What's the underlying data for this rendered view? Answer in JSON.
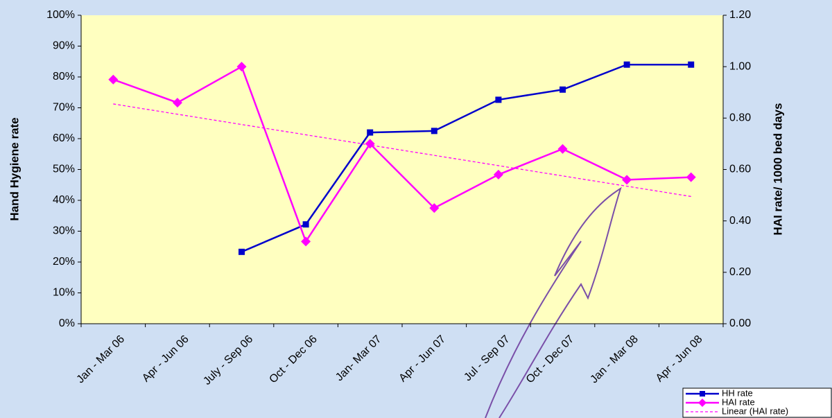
{
  "chart_data": {
    "type": "line",
    "categories": [
      "Jan - Mar 06",
      "Apr - Jun 06",
      "July - Sep 06",
      "Oct - Dec 06",
      "Jan- Mar 07",
      "Apr - Jun 07",
      "Jul - Sep 07",
      "Oct - Dec 07",
      "Jan - Mar 08",
      "Apr - Jun 08"
    ],
    "y_label": "Hand Hygiene rate",
    "y2_label": "HAI rate/ 1000 bed days",
    "ylim": [
      0,
      100
    ],
    "yticks": [
      {
        "value": 0,
        "label": "0%"
      },
      {
        "value": 10,
        "label": "10%"
      },
      {
        "value": 20,
        "label": "20%"
      },
      {
        "value": 30,
        "label": "30%"
      },
      {
        "value": 40,
        "label": "40%"
      },
      {
        "value": 50,
        "label": "50%"
      },
      {
        "value": 60,
        "label": "60%"
      },
      {
        "value": 70,
        "label": "70%"
      },
      {
        "value": 80,
        "label": "80%"
      },
      {
        "value": 90,
        "label": "90%"
      },
      {
        "value": 100,
        "label": "100%"
      }
    ],
    "y2lim": [
      0,
      1.2
    ],
    "y2ticks": [
      {
        "value": 0,
        "label": "0.00"
      },
      {
        "value": 0.2,
        "label": "0.20"
      },
      {
        "value": 0.4,
        "label": "0.40"
      },
      {
        "value": 0.6,
        "label": "0.60"
      },
      {
        "value": 0.8,
        "label": "0.80"
      },
      {
        "value": 1,
        "label": "1.00"
      },
      {
        "value": 1.2,
        "label": "1.20"
      }
    ],
    "legend": "bottom-right",
    "series": [
      {
        "name": "HH rate",
        "color": "#0000cc",
        "marker": "square",
        "style": "solid",
        "values": [
          null,
          null,
          23.3,
          32.2,
          62,
          62.5,
          72.6,
          75.9,
          84,
          84
        ]
      },
      {
        "name": "HAI rate",
        "color": "#ff00ff",
        "marker": "diamond",
        "style": "solid",
        "axis": "y2",
        "values": [
          0.95,
          0.86,
          1.0,
          0.32,
          0.7,
          0.45,
          0.58,
          0.68,
          0.56,
          0.57
        ]
      },
      {
        "name": "Linear (HAI rate)",
        "color": "#ff00ff",
        "marker": "none",
        "style": "dashed",
        "axis": "y2",
        "values": [
          0.855,
          0.815,
          0.775,
          0.735,
          0.695,
          0.655,
          0.615,
          0.575,
          0.535,
          0.495
        ]
      }
    ]
  }
}
